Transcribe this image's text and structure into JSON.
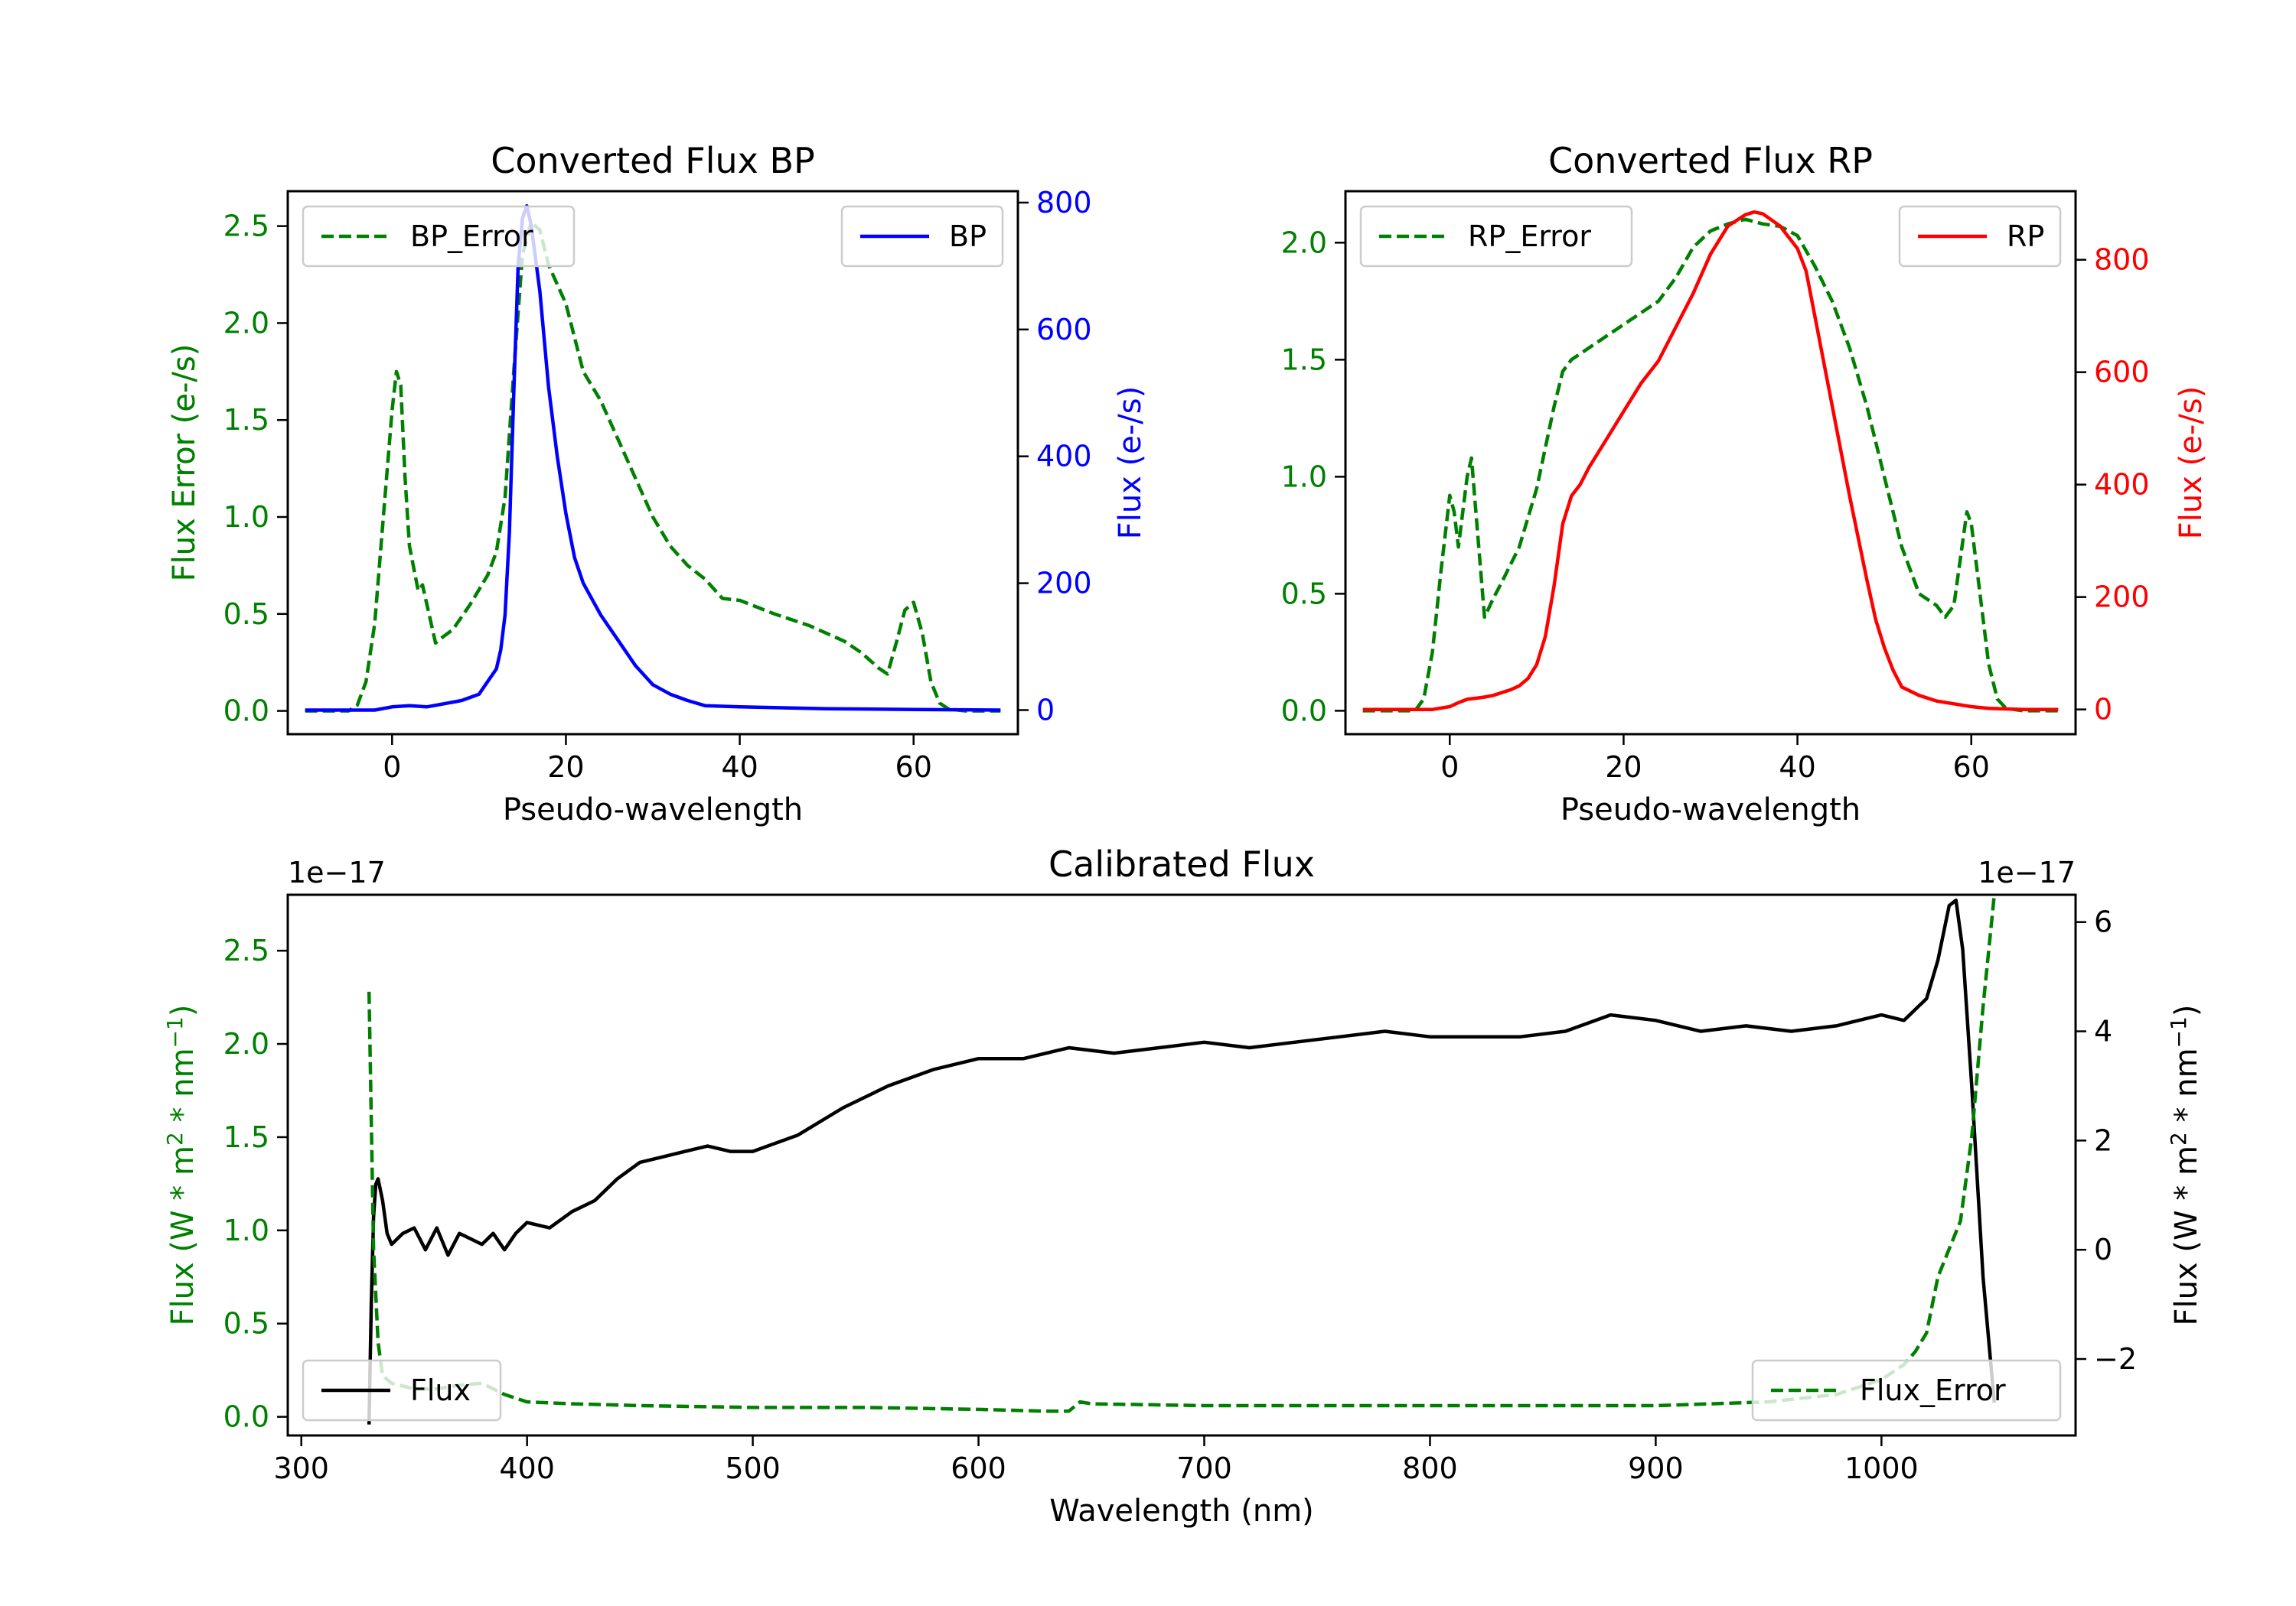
{
  "chart_data": [
    {
      "id": "bp",
      "type": "line",
      "title": "Converted Flux BP",
      "xlabel": "Pseudo-wavelength",
      "xlim": [
        -12,
        72
      ],
      "xticks": [
        0,
        20,
        40,
        60
      ],
      "left_axis": {
        "label": "Flux Error (e-/s)",
        "color": "#008000",
        "ylim": [
          -0.12,
          2.68
        ],
        "ticks": [
          0.0,
          0.5,
          1.0,
          1.5,
          2.0,
          2.5
        ],
        "tick_labels": [
          "0.0",
          "0.5",
          "1.0",
          "1.5",
          "2.0",
          "2.5"
        ]
      },
      "right_axis": {
        "label": "Flux (e-/s)",
        "color": "#0000ff",
        "ylim": [
          -38,
          818
        ],
        "ticks": [
          0,
          200,
          400,
          600,
          800
        ],
        "tick_labels": [
          "0",
          "200",
          "400",
          "600",
          "800"
        ]
      },
      "series": [
        {
          "name": "BP_Error",
          "axis": "left",
          "color": "#008000",
          "style": "dashed",
          "x": [
            -10,
            -5,
            -4,
            -3,
            -2,
            -1,
            0,
            0.5,
            1,
            1.5,
            2,
            3,
            3.5,
            4,
            5,
            5.5,
            7,
            9,
            11,
            12,
            13,
            14,
            15,
            16,
            17,
            18,
            20,
            22,
            24,
            26,
            28,
            30,
            32,
            34,
            36,
            38,
            40,
            44,
            48,
            52,
            54,
            56,
            57,
            58,
            59,
            60,
            61,
            62,
            63,
            64,
            66,
            70
          ],
          "y": [
            0.0,
            0.0,
            0.03,
            0.15,
            0.45,
            1.0,
            1.55,
            1.75,
            1.68,
            1.2,
            0.85,
            0.62,
            0.65,
            0.55,
            0.35,
            0.37,
            0.42,
            0.55,
            0.7,
            0.82,
            1.1,
            1.75,
            2.35,
            2.52,
            2.48,
            2.3,
            2.1,
            1.75,
            1.6,
            1.4,
            1.2,
            1.0,
            0.85,
            0.75,
            0.68,
            0.58,
            0.57,
            0.5,
            0.44,
            0.36,
            0.3,
            0.22,
            0.19,
            0.35,
            0.52,
            0.56,
            0.4,
            0.15,
            0.04,
            0.01,
            0.0,
            0.0
          ]
        },
        {
          "name": "BP",
          "axis": "right",
          "color": "#0000ff",
          "style": "solid",
          "x": [
            -10,
            -2,
            0,
            2,
            4,
            6,
            8,
            10,
            11,
            12,
            12.5,
            13,
            13.5,
            14,
            14.5,
            15,
            15.5,
            16,
            17,
            18,
            19,
            20,
            21,
            22,
            24,
            26,
            28,
            30,
            32,
            34,
            36,
            40,
            50,
            60,
            70
          ],
          "y": [
            0,
            0,
            5,
            7,
            5,
            10,
            15,
            25,
            45,
            65,
            95,
            150,
            280,
            500,
            700,
            775,
            795,
            765,
            660,
            510,
            400,
            310,
            240,
            200,
            150,
            110,
            70,
            40,
            25,
            15,
            7,
            5,
            2,
            1,
            0
          ]
        }
      ],
      "legends": [
        {
          "position": "upper-left",
          "label": "BP_Error"
        },
        {
          "position": "upper-right",
          "label": "BP"
        }
      ]
    },
    {
      "id": "rp",
      "type": "line",
      "title": "Converted Flux RP",
      "xlabel": "Pseudo-wavelength",
      "xlim": [
        -12,
        72
      ],
      "xticks": [
        0,
        20,
        40,
        60
      ],
      "left_axis": {
        "label": "Flux Error (e-/s)",
        "color": "#008000",
        "ylim": [
          -0.1,
          2.22
        ],
        "ticks": [
          0.0,
          0.5,
          1.0,
          1.5,
          2.0
        ],
        "tick_labels": [
          "0.0",
          "0.5",
          "1.0",
          "1.5",
          "2.0"
        ]
      },
      "right_axis": {
        "label": "Flux (e-/s)",
        "color": "#ff0000",
        "ylim": [
          -44,
          922
        ],
        "ticks": [
          0,
          200,
          400,
          600,
          800
        ],
        "tick_labels": [
          "0",
          "200",
          "400",
          "600",
          "800"
        ]
      },
      "series": [
        {
          "name": "RP_Error",
          "axis": "left",
          "color": "#008000",
          "style": "dashed",
          "x": [
            -10,
            -4,
            -3,
            -2,
            -1,
            0,
            0.5,
            1,
            2,
            2.5,
            3,
            4,
            5,
            6,
            8,
            10,
            12,
            13,
            14,
            16,
            20,
            24,
            26,
            28,
            30,
            32,
            34,
            36,
            38,
            40,
            42,
            44,
            46,
            48,
            50,
            52,
            54,
            56,
            57,
            58,
            59,
            59.5,
            60,
            61,
            62,
            63,
            64,
            66,
            70
          ],
          "y": [
            0.0,
            0.0,
            0.05,
            0.25,
            0.6,
            0.92,
            0.85,
            0.7,
            1.0,
            1.08,
            0.85,
            0.4,
            0.48,
            0.55,
            0.7,
            0.95,
            1.3,
            1.45,
            1.5,
            1.55,
            1.65,
            1.75,
            1.85,
            1.98,
            2.05,
            2.08,
            2.1,
            2.08,
            2.07,
            2.03,
            1.9,
            1.75,
            1.55,
            1.3,
            1.0,
            0.7,
            0.5,
            0.45,
            0.4,
            0.45,
            0.72,
            0.85,
            0.8,
            0.5,
            0.2,
            0.05,
            0.01,
            0.0,
            0.0
          ]
        },
        {
          "name": "RP",
          "axis": "right",
          "color": "#ff0000",
          "style": "solid",
          "x": [
            -10,
            -2,
            0,
            1,
            2,
            3,
            4,
            5,
            6,
            7,
            8,
            9,
            10,
            11,
            12,
            13,
            14,
            15,
            16,
            18,
            20,
            22,
            24,
            26,
            28,
            30,
            32,
            34,
            35,
            36,
            38,
            40,
            41,
            42,
            44,
            46,
            48,
            49,
            50,
            51,
            52,
            54,
            56,
            58,
            60,
            62,
            66,
            70
          ],
          "y": [
            0,
            0,
            5,
            12,
            18,
            20,
            22,
            25,
            30,
            35,
            42,
            55,
            80,
            130,
            220,
            330,
            380,
            400,
            430,
            480,
            530,
            580,
            620,
            680,
            740,
            810,
            860,
            880,
            885,
            882,
            860,
            820,
            780,
            700,
            540,
            380,
            230,
            160,
            110,
            70,
            40,
            25,
            15,
            10,
            5,
            2,
            0,
            0
          ]
        }
      ],
      "legends": [
        {
          "position": "upper-left",
          "label": "RP_Error"
        },
        {
          "position": "upper-right",
          "label": "RP"
        }
      ]
    },
    {
      "id": "cal",
      "type": "line",
      "title": "Calibrated Flux",
      "xlabel": "Wavelength (nm)",
      "xlim": [
        294,
        1086
      ],
      "xticks": [
        300,
        400,
        500,
        600,
        700,
        800,
        900,
        1000
      ],
      "left_axis": {
        "label_main": "Flux (W * m",
        "label_sup1": "2",
        "label_mid": " * nm",
        "label_sup2": "−1",
        "label_end": ")",
        "color": "#008000",
        "offset_label": "1e−17",
        "ylim": [
          -0.1,
          2.8
        ],
        "ticks": [
          0.0,
          0.5,
          1.0,
          1.5,
          2.0,
          2.5
        ],
        "tick_labels": [
          "0.0",
          "0.5",
          "1.0",
          "1.5",
          "2.0",
          "2.5"
        ]
      },
      "right_axis": {
        "label_main": "Flux (W * m",
        "label_sup1": "2",
        "label_mid": " * nm",
        "label_sup2": "−1",
        "label_end": ")",
        "color": "#000000",
        "offset_label": "1e−17",
        "ylim": [
          -3.4,
          6.5
        ],
        "ticks": [
          -2,
          0,
          2,
          4,
          6
        ],
        "tick_labels": [
          "−2",
          "0",
          "2",
          "4",
          "6"
        ]
      },
      "series": [
        {
          "name": "Flux",
          "axis": "right",
          "color": "#000000",
          "style": "solid",
          "x": [
            330,
            331,
            332,
            333,
            334,
            336,
            338,
            340,
            345,
            350,
            355,
            360,
            365,
            370,
            375,
            380,
            385,
            390,
            395,
            400,
            410,
            420,
            430,
            440,
            450,
            460,
            470,
            480,
            490,
            500,
            520,
            540,
            560,
            580,
            600,
            620,
            640,
            660,
            680,
            700,
            720,
            740,
            760,
            780,
            800,
            820,
            840,
            860,
            880,
            900,
            920,
            940,
            960,
            980,
            1000,
            1010,
            1020,
            1025,
            1030,
            1033,
            1036,
            1040,
            1045,
            1050
          ],
          "y": [
            -3.2,
            -1.0,
            0.6,
            1.2,
            1.3,
            0.9,
            0.3,
            0.1,
            0.3,
            0.4,
            0.0,
            0.4,
            -0.1,
            0.3,
            0.2,
            0.1,
            0.3,
            0.0,
            0.3,
            0.5,
            0.4,
            0.7,
            0.9,
            1.3,
            1.6,
            1.7,
            1.8,
            1.9,
            1.8,
            1.8,
            2.1,
            2.6,
            3.0,
            3.3,
            3.5,
            3.5,
            3.7,
            3.6,
            3.7,
            3.8,
            3.7,
            3.8,
            3.9,
            4.0,
            3.9,
            3.9,
            3.9,
            4.0,
            4.3,
            4.2,
            4.0,
            4.1,
            4.0,
            4.1,
            4.3,
            4.2,
            4.6,
            5.3,
            6.3,
            6.4,
            5.5,
            3.0,
            -0.5,
            -2.8
          ]
        },
        {
          "name": "Flux_Error",
          "axis": "left",
          "color": "#008000",
          "style": "dashed",
          "x": [
            330,
            331,
            332,
            334,
            336,
            340,
            350,
            360,
            370,
            380,
            390,
            400,
            420,
            450,
            500,
            550,
            600,
            630,
            640,
            645,
            650,
            700,
            800,
            900,
            950,
            980,
            1000,
            1010,
            1015,
            1020,
            1025,
            1030,
            1035,
            1040,
            1045,
            1050
          ],
          "y": [
            2.28,
            1.6,
            0.9,
            0.4,
            0.22,
            0.18,
            0.15,
            0.15,
            0.17,
            0.18,
            0.12,
            0.08,
            0.07,
            0.06,
            0.05,
            0.05,
            0.04,
            0.03,
            0.03,
            0.08,
            0.07,
            0.06,
            0.06,
            0.06,
            0.08,
            0.12,
            0.2,
            0.28,
            0.35,
            0.45,
            0.75,
            0.9,
            1.05,
            1.5,
            2.2,
            2.8
          ]
        }
      ],
      "legends": [
        {
          "position": "lower-left",
          "label": "Flux"
        },
        {
          "position": "lower-right",
          "label": "Flux_Error"
        }
      ]
    }
  ]
}
